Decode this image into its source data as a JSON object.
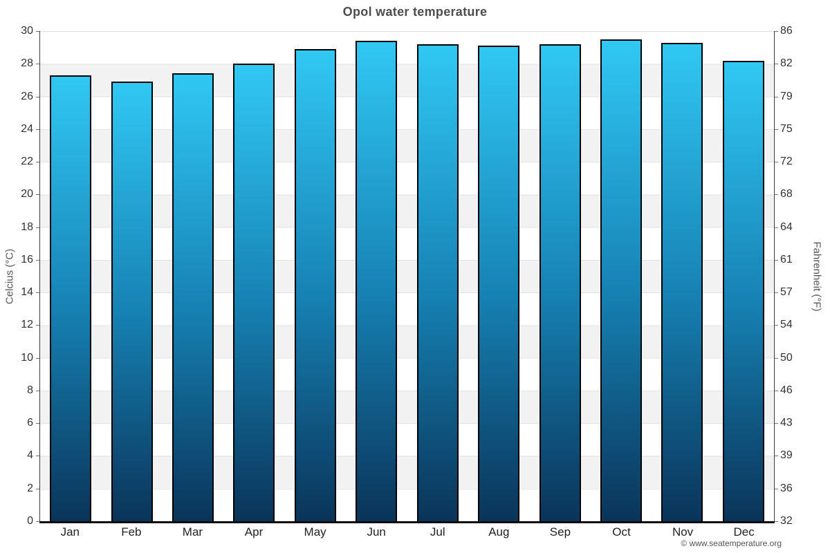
{
  "title": "Opol water temperature",
  "chart_data": {
    "type": "bar",
    "title": "Opol water temperature",
    "categories": [
      "Jan",
      "Feb",
      "Mar",
      "Apr",
      "May",
      "Jun",
      "Jul",
      "Aug",
      "Sep",
      "Oct",
      "Nov",
      "Dec"
    ],
    "series": [
      {
        "name": "Water temperature (Celsius)",
        "values": [
          27.3,
          26.9,
          27.4,
          28.0,
          28.9,
          29.4,
          29.2,
          29.1,
          29.2,
          29.5,
          29.3,
          28.2
        ]
      }
    ],
    "ylabel_left": "Celcius (°C)",
    "ylabel_right": "Fahrenheit (°F)",
    "ylim_celsius": [
      0,
      30
    ],
    "celsius_ticks": [
      30,
      28,
      26,
      24,
      22,
      20,
      18,
      16,
      14,
      12,
      10,
      8,
      6,
      4,
      2,
      0
    ],
    "fahrenheit_ticks": [
      86,
      82,
      79,
      75,
      72,
      68,
      64,
      61,
      57,
      54,
      50,
      46,
      43,
      39,
      36,
      32
    ],
    "xlabel": "",
    "legend": "none",
    "grid": "horizontal lines every 2 degrees C with alternating white/gray bands"
  },
  "footer": {
    "copyright": "© www.seatemperature.org"
  },
  "colors": {
    "bar_gradient_top": "#31c8f4",
    "bar_gradient_mid": "#1682b4",
    "bar_gradient_bottom": "#0a3459",
    "bar_border": "#000000",
    "band_alt": "#f2f2f2",
    "gridline": "#e2e2e2",
    "axis_line": "#3a3a3a",
    "bottom_axis_line": "#0c0c0c",
    "title_text": "#4d4d4d",
    "tick_text": "#333333",
    "axis_title_text": "#555555"
  }
}
